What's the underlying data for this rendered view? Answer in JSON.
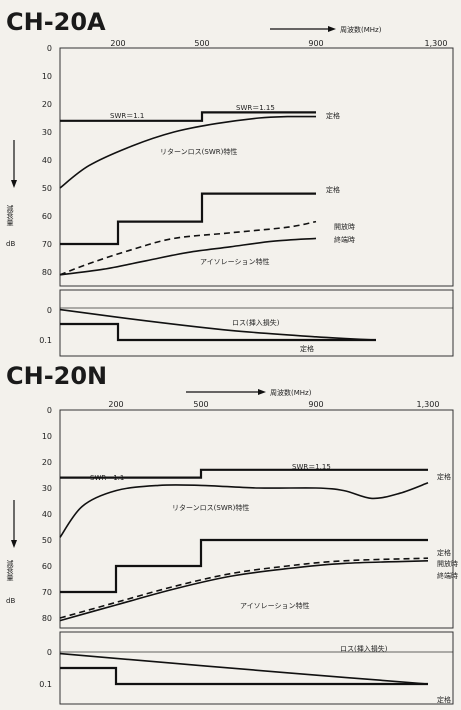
{
  "chart_data": [
    {
      "type": "line",
      "title": "CH-20A",
      "xlabel": "周波数(MHz)",
      "ylabel": "減衰量",
      "yunit": "dB",
      "x_ticks": [
        "200",
        "500",
        "900",
        "1,300"
      ],
      "xlim": [
        0,
        1300
      ],
      "ylim": [
        0,
        85
      ],
      "y_ticks": [
        "0",
        "10",
        "20",
        "30",
        "40",
        "50",
        "60",
        "70",
        "80"
      ],
      "loss_ylim": [
        0,
        0.12
      ],
      "loss_y_ticks": [
        "0",
        "0.1"
      ],
      "annotations": {
        "swr1": "SWR＝1.1",
        "swr2": "SWR＝1.15",
        "spec_top": "定格",
        "rl_curve": "リターンロス(SWR)特性",
        "spec_iso": "定格",
        "open": "開放時",
        "term": "終端時",
        "iso_curve": "アイソレーション特性",
        "loss_curve": "ロス(挿入損失)",
        "spec_loss": "定格"
      },
      "series": [
        {
          "name": "定格",
          "x": [
            0,
            500,
            500,
            900
          ],
          "y": [
            26,
            26,
            23,
            23
          ]
        },
        {
          "name": "リターンロス(SWR)特性",
          "x": [
            0,
            100,
            250,
            400,
            550,
            700,
            800,
            900
          ],
          "y": [
            50,
            42,
            35,
            30,
            27,
            25,
            24.5,
            24.5
          ]
        },
        {
          "name": "定格",
          "x": [
            0,
            200,
            200,
            500,
            500,
            900
          ],
          "y": [
            70,
            70,
            62,
            62,
            52,
            52
          ]
        },
        {
          "name": "開放時",
          "x": [
            0,
            100,
            250,
            400,
            600,
            800,
            900
          ],
          "y": [
            81,
            77,
            72,
            68,
            66,
            64,
            62
          ]
        },
        {
          "name": "終端時",
          "x": [
            0,
            150,
            300,
            450,
            600,
            750,
            900
          ],
          "y": [
            81,
            79,
            76,
            73,
            71,
            69,
            68
          ]
        },
        {
          "name": "ロス(挿入損失)",
          "x": [
            0,
            300,
            600,
            900,
            1100
          ],
          "y": [
            0.005,
            0.04,
            0.07,
            0.09,
            0.1
          ]
        },
        {
          "name": "定格",
          "x": [
            0,
            200,
            200,
            1100
          ],
          "y": [
            0.05,
            0.05,
            0.1,
            0.1
          ]
        }
      ]
    },
    {
      "type": "line",
      "title": "CH-20N",
      "xlabel": "周波数(MHz)",
      "ylabel": "減衰量",
      "yunit": "dB",
      "x_ticks": [
        "200",
        "500",
        "900",
        "1,300"
      ],
      "xlim": [
        0,
        1300
      ],
      "ylim": [
        0,
        85
      ],
      "y_ticks": [
        "0",
        "10",
        "20",
        "30",
        "40",
        "50",
        "60",
        "70",
        "80"
      ],
      "loss_ylim": [
        0,
        0.12
      ],
      "loss_y_ticks": [
        "0",
        "0.1"
      ],
      "annotations": {
        "swr1": "SWR＝1.1",
        "swr2": "SWR＝1.15",
        "spec_top": "定格",
        "rl_curve": "リターンロス(SWR)特性",
        "spec_iso": "定格",
        "open": "開放時",
        "term": "終端時",
        "iso_curve": "アイソレーション特性",
        "loss_curve": "ロス(挿入損失)",
        "spec_loss": "定格"
      },
      "series": [
        {
          "name": "定格",
          "x": [
            0,
            500,
            500,
            1300
          ],
          "y": [
            26,
            26,
            23,
            23
          ]
        },
        {
          "name": "リターンロス(SWR)特性",
          "x": [
            0,
            80,
            200,
            350,
            500,
            700,
            900,
            1000,
            1100,
            1200,
            1300
          ],
          "y": [
            49,
            37,
            31,
            29,
            29,
            30,
            30,
            31,
            34,
            32,
            28
          ]
        },
        {
          "name": "定格",
          "x": [
            0,
            200,
            200,
            500,
            500,
            1300
          ],
          "y": [
            70,
            70,
            60,
            60,
            50,
            50
          ]
        },
        {
          "name": "開放時",
          "x": [
            0,
            200,
            400,
            600,
            800,
            1000,
            1300
          ],
          "y": [
            80,
            74,
            68,
            63,
            60,
            58,
            57
          ]
        },
        {
          "name": "終端時",
          "x": [
            0,
            200,
            400,
            600,
            800,
            1000,
            1300
          ],
          "y": [
            81,
            75,
            69,
            64,
            61,
            59,
            58
          ]
        },
        {
          "name": "ロス(挿入損失)",
          "x": [
            0,
            400,
            800,
            1300
          ],
          "y": [
            0.005,
            0.035,
            0.065,
            0.1
          ]
        },
        {
          "name": "定格",
          "x": [
            0,
            200,
            200,
            1300
          ],
          "y": [
            0.05,
            0.05,
            0.1,
            0.1
          ]
        }
      ]
    }
  ]
}
